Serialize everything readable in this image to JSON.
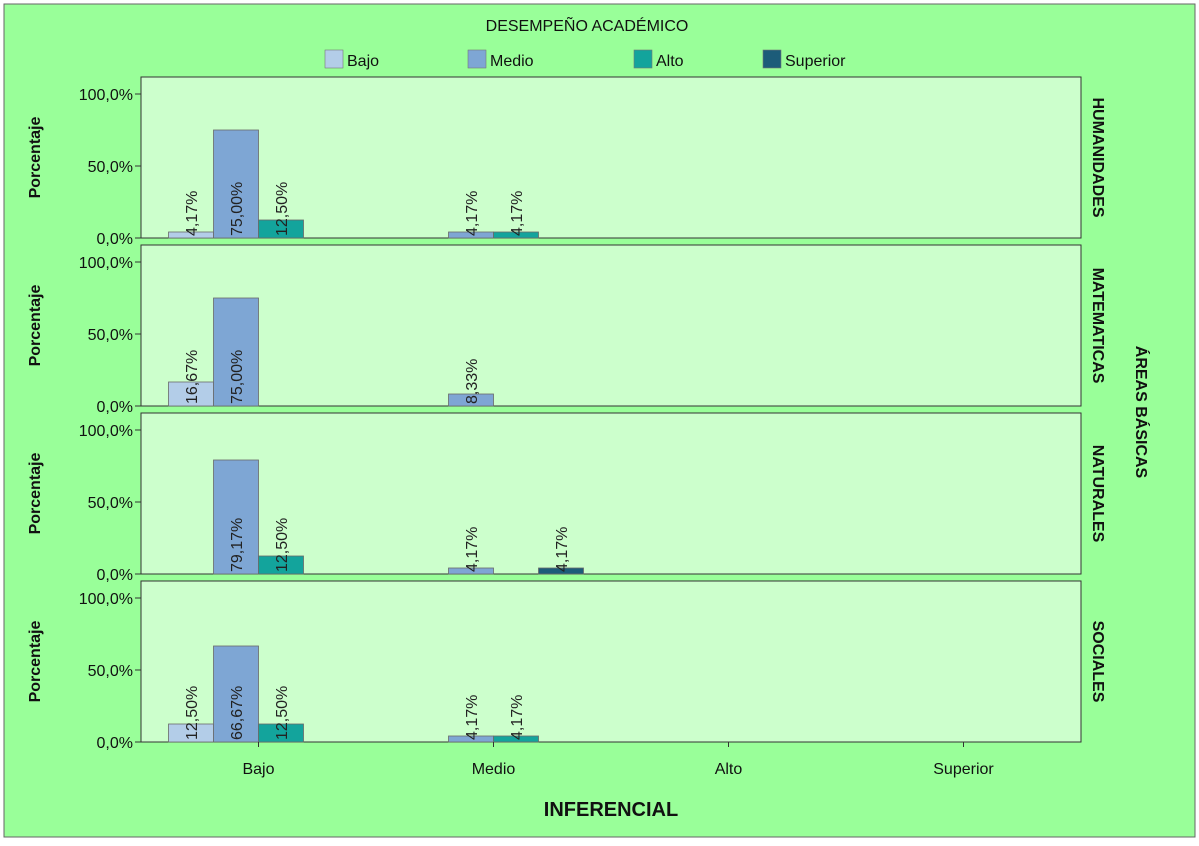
{
  "chart_data": {
    "type": "bar",
    "legend_title": "DESEMPEÑO ACADÉMICO",
    "legend_position": "top",
    "xlabel": "INFERENCIAL",
    "ylabel": "Porcentaje",
    "facet_label": "ÁREAS BÁSICAS",
    "categories": [
      "Bajo",
      "Medio",
      "Alto",
      "Superior"
    ],
    "series": [
      {
        "name": "Bajo",
        "color": "#b3cde8"
      },
      {
        "name": "Medio",
        "color": "#7ea6d4"
      },
      {
        "name": "Alto",
        "color": "#13a49c"
      },
      {
        "name": "Superior",
        "color": "#1c5c79"
      }
    ],
    "y_ticks": [
      "0,0%",
      "50,0%",
      "100,0%"
    ],
    "ylim": [
      0,
      100
    ],
    "grid": false,
    "colors": {
      "background": "#99ff99",
      "plot_background": "#ccffcc"
    },
    "panels": [
      {
        "name": "HUMANIDADES",
        "values": [
          [
            4.17,
            75.0,
            12.5,
            null
          ],
          [
            null,
            4.17,
            4.17,
            null
          ],
          [
            null,
            null,
            null,
            null
          ],
          [
            null,
            null,
            null,
            null
          ]
        ],
        "labels": [
          [
            "4,17%",
            "75,00%",
            "12,50%",
            ""
          ],
          [
            "",
            "4,17%",
            "4,17%",
            ""
          ],
          [
            "",
            "",
            "",
            ""
          ],
          [
            "",
            "",
            "",
            ""
          ]
        ]
      },
      {
        "name": "MATEMATICAS",
        "values": [
          [
            16.67,
            75.0,
            null,
            null
          ],
          [
            null,
            8.33,
            null,
            null
          ],
          [
            null,
            null,
            null,
            null
          ],
          [
            null,
            null,
            null,
            null
          ]
        ],
        "labels": [
          [
            "16,67%",
            "75,00%",
            "",
            ""
          ],
          [
            "",
            "8,33%",
            "",
            ""
          ],
          [
            "",
            "",
            "",
            ""
          ],
          [
            "",
            "",
            "",
            ""
          ]
        ]
      },
      {
        "name": "NATURALES",
        "values": [
          [
            null,
            79.17,
            12.5,
            null
          ],
          [
            null,
            4.17,
            null,
            4.17
          ],
          [
            null,
            null,
            null,
            null
          ],
          [
            null,
            null,
            null,
            null
          ]
        ],
        "labels": [
          [
            "",
            "79,17%",
            "12,50%",
            ""
          ],
          [
            "",
            "4,17%",
            "",
            "4,17%"
          ],
          [
            "",
            "",
            "",
            ""
          ],
          [
            "",
            "",
            "",
            ""
          ]
        ]
      },
      {
        "name": "SOCIALES",
        "values": [
          [
            12.5,
            66.67,
            12.5,
            null
          ],
          [
            null,
            4.17,
            4.17,
            null
          ],
          [
            null,
            null,
            null,
            null
          ],
          [
            null,
            null,
            null,
            null
          ]
        ],
        "labels": [
          [
            "12,50%",
            "66,67%",
            "12,50%",
            ""
          ],
          [
            "",
            "4,17%",
            "4,17%",
            ""
          ],
          [
            "",
            "",
            "",
            ""
          ],
          [
            "",
            "",
            "",
            ""
          ]
        ]
      }
    ]
  }
}
